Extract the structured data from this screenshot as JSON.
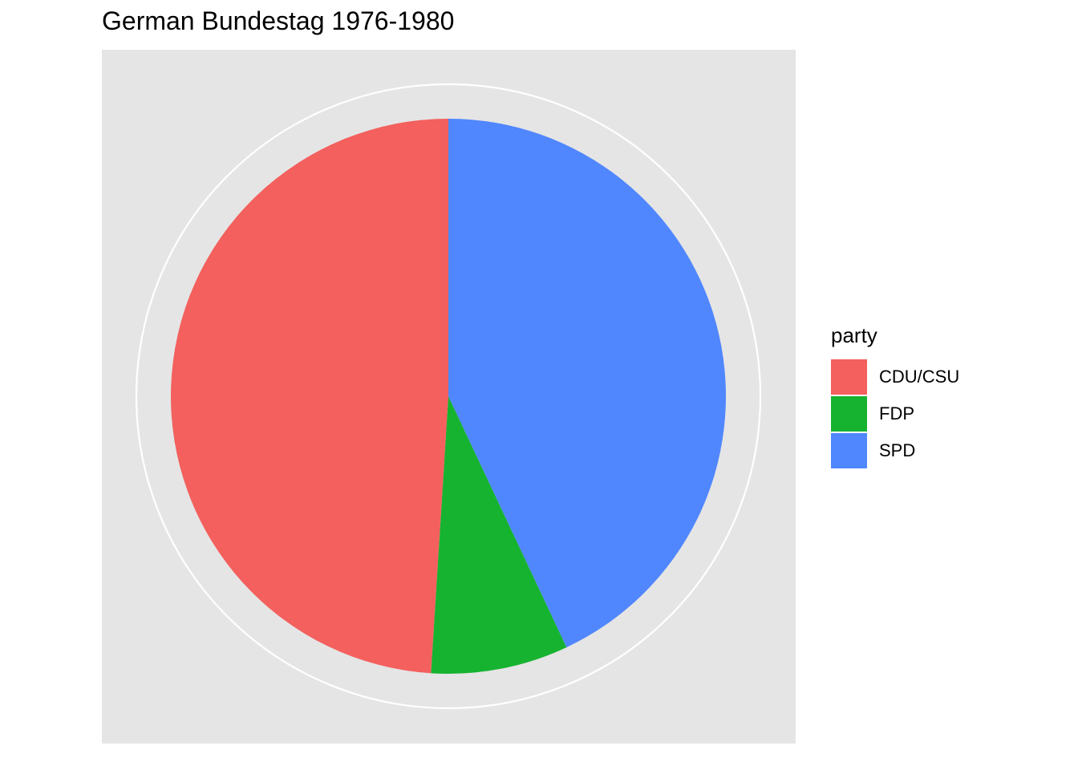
{
  "chart_data": {
    "type": "pie",
    "title": "German Bundestag 1976-1980",
    "legend_title": "party",
    "legend_position": "right",
    "direction": "clockwise-from-top",
    "panel_background": "#e5e5e5",
    "grid_color": "#ffffff",
    "slices": [
      {
        "label": "SPD",
        "value": 43.0,
        "color": "#5087fe"
      },
      {
        "label": "FDP",
        "value": 8.0,
        "color": "#16b330"
      },
      {
        "label": "CDU/CSU",
        "value": 49.0,
        "color": "#f3605d"
      }
    ],
    "legend": [
      {
        "label": "CDU/CSU",
        "color": "#f3605d"
      },
      {
        "label": "FDP",
        "color": "#16b330"
      },
      {
        "label": "SPD",
        "color": "#5087fe"
      }
    ]
  }
}
